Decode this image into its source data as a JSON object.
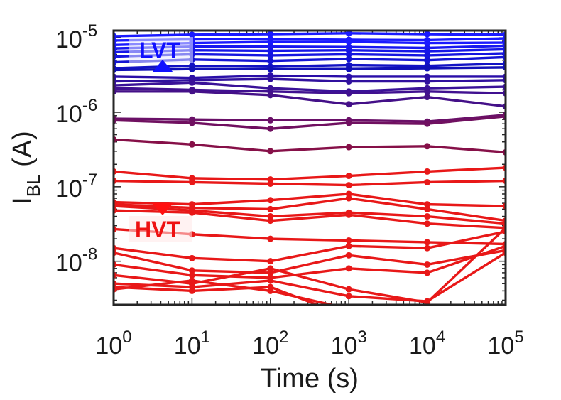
{
  "chart_data": {
    "type": "line",
    "xlabel": "Time (s)",
    "ylabel": {
      "main": "I",
      "sub": "BL",
      "unit": " (A)"
    },
    "x_scale": "log",
    "y_scale": "log",
    "xlim": [
      1,
      100000
    ],
    "ylim": [
      2.6e-09,
      1.25e-05
    ],
    "x_ticks": [
      {
        "base": "10",
        "exp": "0",
        "value": 1
      },
      {
        "base": "10",
        "exp": "1",
        "value": 10
      },
      {
        "base": "10",
        "exp": "2",
        "value": 100
      },
      {
        "base": "10",
        "exp": "3",
        "value": 1000
      },
      {
        "base": "10",
        "exp": "4",
        "value": 10000
      },
      {
        "base": "10",
        "exp": "5",
        "value": 100000
      }
    ],
    "y_ticks": [
      {
        "base": "10",
        "exp": "-8",
        "value": 1e-08
      },
      {
        "base": "10",
        "exp": "-7",
        "value": 1e-07
      },
      {
        "base": "10",
        "exp": "-6",
        "value": 1e-06
      },
      {
        "base": "10",
        "exp": "-5",
        "value": 1e-05
      }
    ],
    "annotations": {
      "lvt": {
        "text": "LVT",
        "color": "#1010ff"
      },
      "hvt": {
        "text": "HVT",
        "color": "#e81010"
      }
    },
    "x": [
      1,
      10,
      100,
      1000,
      10000,
      100000
    ],
    "series": [
      {
        "color": "#1a1aff",
        "values": [
          1.05e-05,
          1.1e-05,
          1.12e-05,
          1.15e-05,
          1.12e-05,
          1.1e-05
        ]
      },
      {
        "color": "#1a1aff",
        "values": [
          9.2e-06,
          9.5e-06,
          9.6e-06,
          9.4e-06,
          9.3e-06,
          9.8e-06
        ]
      },
      {
        "color": "#1a1aff",
        "values": [
          8e-06,
          8.5e-06,
          8.8e-06,
          8.8e-06,
          8.5e-06,
          8.6e-06
        ]
      },
      {
        "color": "#1818f0",
        "values": [
          7.2e-06,
          7.6e-06,
          7.6e-06,
          7.5e-06,
          7.3e-06,
          7.8e-06
        ]
      },
      {
        "color": "#1616e8",
        "values": [
          6.4e-06,
          6.8e-06,
          6.7e-06,
          6.8e-06,
          6.6e-06,
          7e-06
        ]
      },
      {
        "color": "#1515e0",
        "values": [
          5.6e-06,
          6e-06,
          5.8e-06,
          6e-06,
          5.8e-06,
          6.2e-06
        ]
      },
      {
        "color": "#1414d4",
        "values": [
          4.7e-06,
          5.1e-06,
          4.9e-06,
          5.2e-06,
          5e-06,
          5.5e-06
        ]
      },
      {
        "color": "#1212c4",
        "values": [
          3.9e-06,
          4.2e-06,
          4.1e-06,
          4.3e-06,
          4.2e-06,
          4.5e-06
        ]
      },
      {
        "color": "#1010b8",
        "values": [
          3.7e-06,
          3.8e-06,
          3.8e-06,
          3.8e-06,
          3.9e-06,
          4e-06
        ]
      },
      {
        "color": "#2a0ea8",
        "values": [
          3e-06,
          2.9e-06,
          3.1e-06,
          3e-06,
          3e-06,
          3e-06
        ]
      },
      {
        "color": "#30109e",
        "values": [
          2.6e-06,
          2.7e-06,
          2.8e-06,
          2.6e-06,
          2.6e-06,
          2.7e-06
        ]
      },
      {
        "color": "#3a1298",
        "values": [
          2.3e-06,
          2.5e-06,
          2.1e-06,
          1.9e-06,
          2.1e-06,
          2.2e-06
        ]
      },
      {
        "color": "#401090",
        "values": [
          2.1e-06,
          2e-06,
          1.9e-06,
          1.8e-06,
          1.9e-06,
          1.8e-06
        ]
      },
      {
        "color": "#441088",
        "values": [
          1.9e-06,
          1.9e-06,
          1.7e-06,
          1.28e-06,
          1.6e-06,
          1.2e-06
        ]
      },
      {
        "color": "#6a1068",
        "values": [
          8.2e-07,
          8e-07,
          7.8e-07,
          7.8e-07,
          7.5e-07,
          9.2e-07
        ]
      },
      {
        "color": "#701060",
        "values": [
          7.8e-07,
          7.2e-07,
          6e-07,
          7.2e-07,
          7e-07,
          8.8e-07
        ]
      },
      {
        "color": "#861048",
        "values": [
          4.3e-07,
          3.7e-07,
          3e-07,
          3.4e-07,
          3.5e-07,
          2.9e-07
        ]
      },
      {
        "color": "#e81818",
        "values": [
          1.6e-07,
          1.3e-07,
          1.25e-07,
          1.4e-07,
          1.6e-07,
          1.8e-07
        ]
      },
      {
        "color": "#e81818",
        "values": [
          1.2e-07,
          1.15e-07,
          1.1e-07,
          1.05e-07,
          1.15e-07,
          1.2e-07
        ]
      },
      {
        "color": "#e81818",
        "values": [
          6.2e-08,
          5.8e-08,
          6.6e-08,
          8e-08,
          5.8e-08,
          5.5e-08
        ]
      },
      {
        "color": "#e81818",
        "values": [
          5.8e-08,
          5.2e-08,
          5e-08,
          7e-08,
          5e-08,
          3.5e-08
        ]
      },
      {
        "color": "#e81818",
        "values": [
          5.5e-08,
          4.8e-08,
          4e-08,
          4.5e-08,
          4e-08,
          3.2e-08
        ]
      },
      {
        "color": "#e81818",
        "values": [
          4.8e-08,
          4.5e-08,
          3.5e-08,
          4.2e-08,
          3.2e-08,
          2.8e-08
        ]
      },
      {
        "color": "#e81818",
        "values": [
          2.7e-08,
          2.3e-08,
          2e-08,
          1.9e-08,
          1.8e-08,
          1.7e-08
        ]
      },
      {
        "color": "#e81818",
        "values": [
          1.5e-08,
          1.1e-08,
          1e-08,
          1.6e-08,
          1.5e-08,
          2.5e-08
        ]
      },
      {
        "color": "#e81818",
        "values": [
          1.3e-08,
          7.5e-09,
          7e-09,
          1.2e-08,
          9e-09,
          1.4e-08
        ]
      },
      {
        "color": "#e81818",
        "values": [
          9e-09,
          6.5e-09,
          6e-09,
          8e-09,
          7e-09,
          1.6e-08
        ]
      },
      {
        "color": "#e81818",
        "values": [
          6.5e-09,
          5e-09,
          8e-09,
          4.2e-09,
          2.8e-09,
          2.8e-08
        ]
      },
      {
        "color": "#e81818",
        "values": [
          5e-09,
          4.5e-09,
          5.5e-09,
          3.4e-09,
          2.9e-09,
          1.3e-08
        ]
      },
      {
        "color": "#e81818",
        "values": [
          4.5e-09,
          4e-09,
          4.5e-09,
          1.8e-09,
          2.4e-09,
          1.8e-09
        ]
      },
      {
        "color": "#e81818",
        "values": [
          4.2e-09,
          5.5e-09,
          4e-09,
          2.3e-09,
          2e-09,
          2.2e-09
        ]
      }
    ]
  }
}
